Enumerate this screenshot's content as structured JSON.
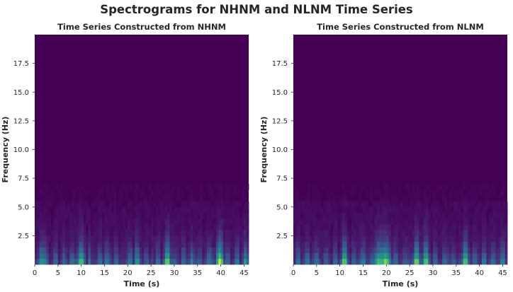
{
  "figure": {
    "suptitle": "Spectrograms for NHNM and NLNM Time Series"
  },
  "colors": {
    "viridis_low": "#440154",
    "viridis_mid": "#21918c",
    "viridis_high": "#fde725",
    "tick_text": "#262626"
  },
  "chart_data": [
    {
      "type": "heatmap",
      "colormap": "viridis",
      "title": "Time Series Constructed from NHNM",
      "xlabel": "Time (s)",
      "ylabel": "Frequency (Hz)",
      "xlim": [
        0,
        46
      ],
      "ylim": [
        0,
        20
      ],
      "xticks": [
        0,
        5,
        10,
        15,
        20,
        25,
        30,
        35,
        40,
        45
      ],
      "yticks": [
        "2.5",
        "5.0",
        "7.5",
        "10.0",
        "12.5",
        "15.0",
        "17.5"
      ],
      "grid": false,
      "legend": false,
      "energy_band_top_hz": 5.5,
      "bright_columns": [
        {
          "t": 1.5,
          "intensity": 0.55,
          "width": 0.8
        },
        {
          "t": 2.3,
          "intensity": 0.45,
          "width": 0.6
        },
        {
          "t": 4.5,
          "intensity": 0.4,
          "width": 0.6
        },
        {
          "t": 6.2,
          "intensity": 0.35,
          "width": 0.5
        },
        {
          "t": 8.0,
          "intensity": 0.4,
          "width": 0.6
        },
        {
          "t": 10.0,
          "intensity": 0.75,
          "width": 0.8
        },
        {
          "t": 11.8,
          "intensity": 0.4,
          "width": 0.5
        },
        {
          "t": 14.0,
          "intensity": 0.4,
          "width": 0.6
        },
        {
          "t": 15.5,
          "intensity": 0.45,
          "width": 0.6
        },
        {
          "t": 17.5,
          "intensity": 0.4,
          "width": 0.5
        },
        {
          "t": 20.5,
          "intensity": 0.45,
          "width": 0.6
        },
        {
          "t": 22.0,
          "intensity": 0.6,
          "width": 0.6
        },
        {
          "t": 24.0,
          "intensity": 0.35,
          "width": 0.5
        },
        {
          "t": 26.5,
          "intensity": 0.4,
          "width": 0.6
        },
        {
          "t": 28.5,
          "intensity": 0.85,
          "width": 0.7
        },
        {
          "t": 30.0,
          "intensity": 0.35,
          "width": 0.5
        },
        {
          "t": 32.0,
          "intensity": 0.4,
          "width": 0.6
        },
        {
          "t": 33.8,
          "intensity": 0.45,
          "width": 0.6
        },
        {
          "t": 35.5,
          "intensity": 0.35,
          "width": 0.5
        },
        {
          "t": 37.5,
          "intensity": 0.45,
          "width": 0.6
        },
        {
          "t": 39.8,
          "intensity": 0.95,
          "width": 0.8
        },
        {
          "t": 41.5,
          "intensity": 0.4,
          "width": 0.5
        },
        {
          "t": 43.5,
          "intensity": 0.45,
          "width": 0.6
        },
        {
          "t": 45.3,
          "intensity": 0.55,
          "width": 0.6
        }
      ]
    },
    {
      "type": "heatmap",
      "colormap": "viridis",
      "title": "Time Series Constructed from NLNM",
      "xlabel": "Time (s)",
      "ylabel": "Frequency (Hz)",
      "xlim": [
        0,
        46
      ],
      "ylim": [
        0,
        20
      ],
      "xticks": [
        0,
        5,
        10,
        15,
        20,
        25,
        30,
        35,
        40,
        45
      ],
      "yticks": [
        "2.5",
        "5.0",
        "7.5",
        "10.0",
        "12.5",
        "15.0",
        "17.5"
      ],
      "grid": false,
      "legend": false,
      "energy_band_top_hz": 5.5,
      "bright_columns": [
        {
          "t": 1.0,
          "intensity": 0.4,
          "width": 0.6
        },
        {
          "t": 3.0,
          "intensity": 0.45,
          "width": 0.6
        },
        {
          "t": 5.0,
          "intensity": 0.4,
          "width": 0.6
        },
        {
          "t": 7.0,
          "intensity": 0.35,
          "width": 0.5
        },
        {
          "t": 9.0,
          "intensity": 0.4,
          "width": 0.6
        },
        {
          "t": 11.0,
          "intensity": 0.8,
          "width": 0.7
        },
        {
          "t": 13.0,
          "intensity": 0.4,
          "width": 0.5
        },
        {
          "t": 15.0,
          "intensity": 0.45,
          "width": 0.6
        },
        {
          "t": 17.0,
          "intensity": 0.4,
          "width": 0.5
        },
        {
          "t": 18.5,
          "intensity": 0.7,
          "width": 1.2
        },
        {
          "t": 19.8,
          "intensity": 0.8,
          "width": 1.2
        },
        {
          "t": 22.0,
          "intensity": 0.4,
          "width": 0.6
        },
        {
          "t": 24.0,
          "intensity": 0.35,
          "width": 0.5
        },
        {
          "t": 26.5,
          "intensity": 0.85,
          "width": 0.7
        },
        {
          "t": 28.5,
          "intensity": 0.8,
          "width": 0.7
        },
        {
          "t": 30.5,
          "intensity": 0.4,
          "width": 0.5
        },
        {
          "t": 32.5,
          "intensity": 0.4,
          "width": 0.6
        },
        {
          "t": 34.5,
          "intensity": 0.35,
          "width": 0.5
        },
        {
          "t": 37.0,
          "intensity": 0.8,
          "width": 0.7
        },
        {
          "t": 39.0,
          "intensity": 0.4,
          "width": 0.5
        },
        {
          "t": 41.0,
          "intensity": 0.45,
          "width": 0.6
        },
        {
          "t": 43.0,
          "intensity": 0.4,
          "width": 0.6
        },
        {
          "t": 45.0,
          "intensity": 0.5,
          "width": 0.6
        }
      ]
    }
  ]
}
